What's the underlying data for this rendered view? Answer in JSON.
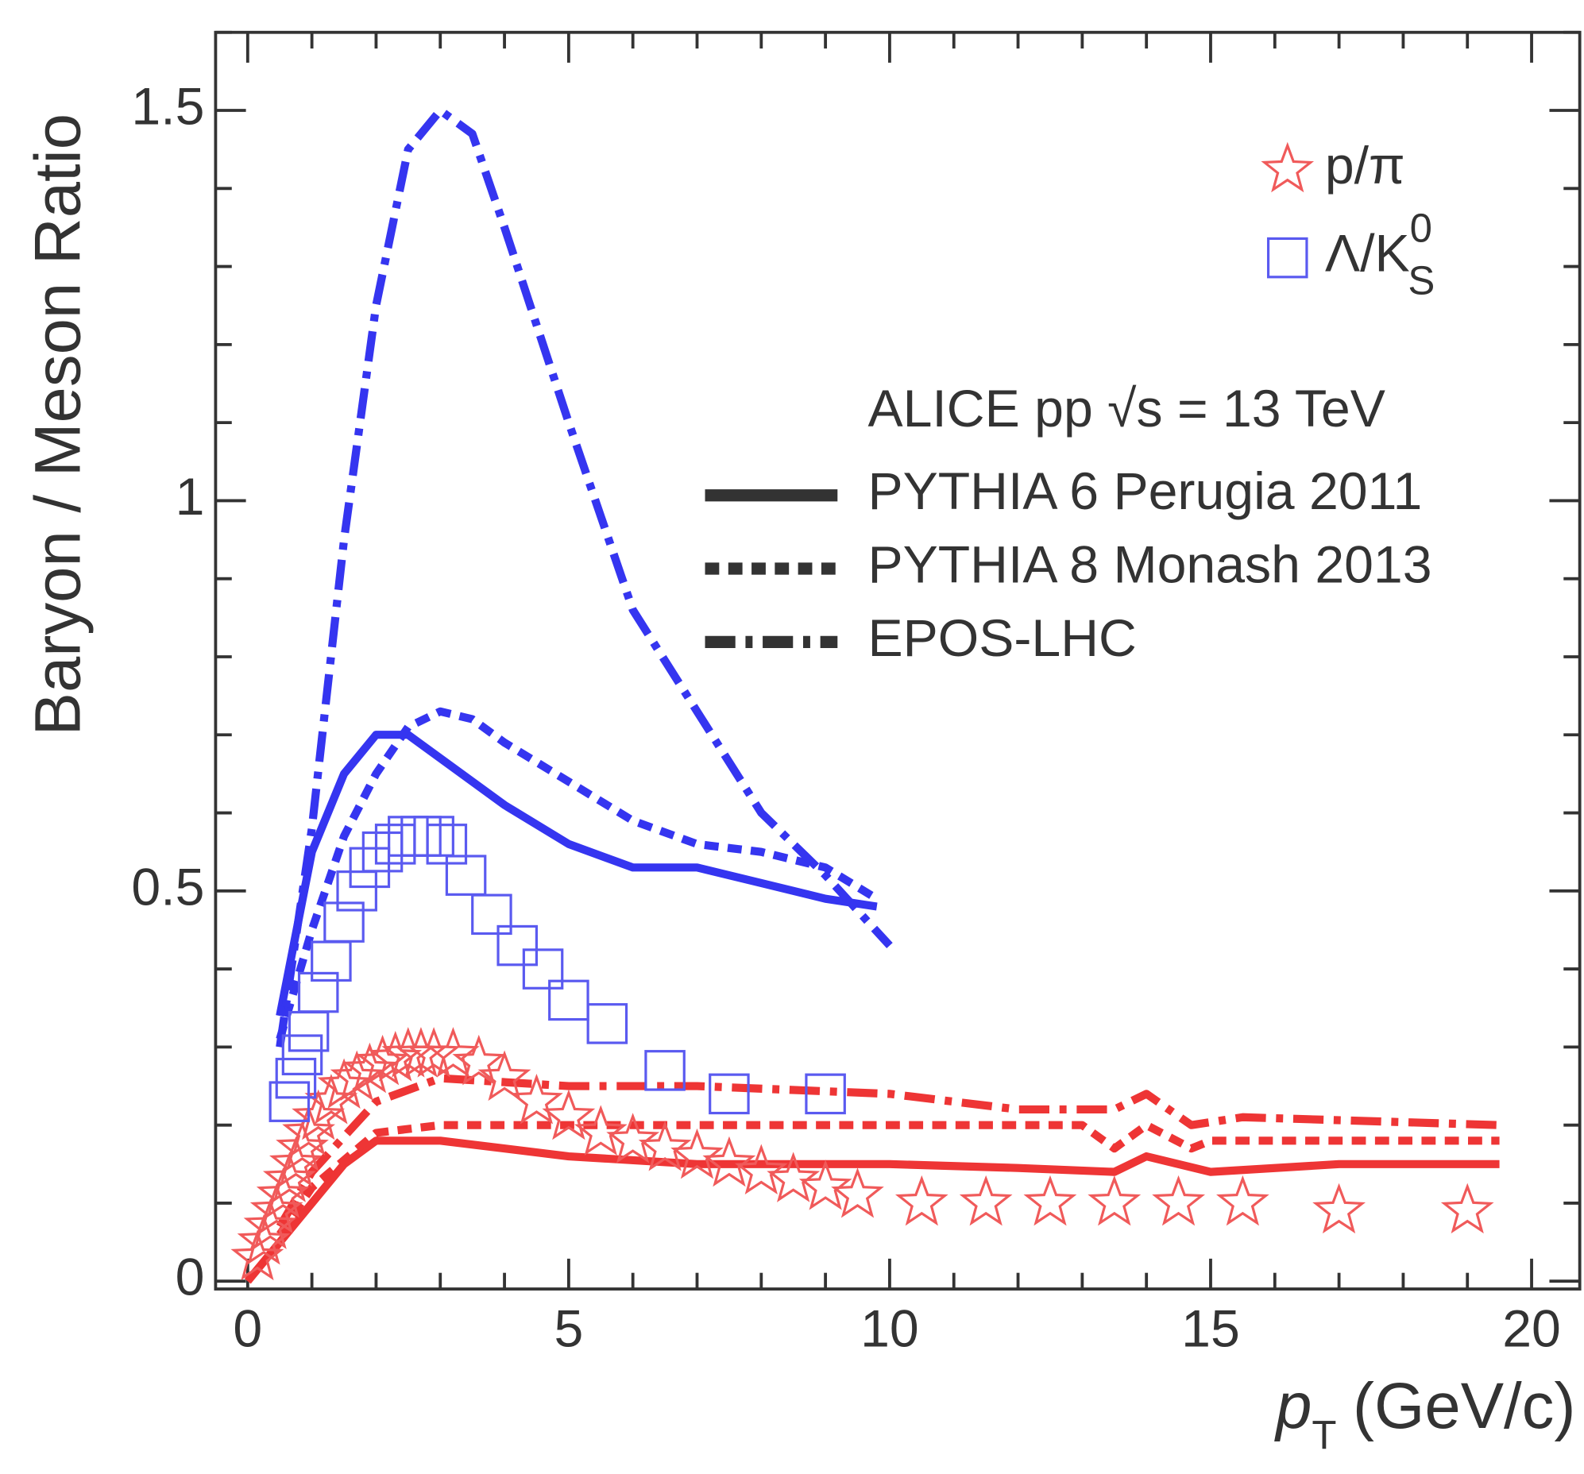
{
  "chart_data": {
    "type": "line",
    "ylabel": "Baryon / Meson Ratio",
    "xlabel": {
      "var": "p",
      "sub": "T",
      "unit": "(GeV/c)"
    },
    "annotation": "ALICE pp √s = 13 TeV",
    "xlim": [
      -0.5,
      20.75
    ],
    "ylim": [
      -0.01,
      1.6
    ],
    "xticks": [
      0,
      5,
      10,
      15,
      20
    ],
    "yticks": [
      0,
      0.5,
      1,
      1.5
    ],
    "xticks_minor": [
      1,
      2,
      3,
      4,
      6,
      7,
      8,
      9,
      11,
      12,
      13,
      14,
      16,
      17,
      18,
      19
    ],
    "yticks_minor": [
      0.1,
      0.2,
      0.3,
      0.4,
      0.6,
      0.7,
      0.8,
      0.9,
      1.1,
      1.2,
      1.3,
      1.4,
      1.6
    ],
    "species": [
      {
        "name": "p/π",
        "color": "#f05a5a",
        "line_color": "#ee3535",
        "marker": "star",
        "x": [
          0.15,
          0.25,
          0.35,
          0.45,
          0.55,
          0.65,
          0.75,
          0.85,
          0.95,
          1.1,
          1.3,
          1.5,
          1.7,
          1.9,
          2.1,
          2.3,
          2.5,
          2.7,
          2.9,
          3.2,
          3.6,
          4.0,
          4.5,
          5.0,
          5.5,
          6.0,
          6.5,
          7.0,
          7.5,
          8.0,
          8.5,
          9.0,
          9.5,
          10.5,
          11.5,
          12.5,
          13.5,
          14.5,
          15.5,
          17,
          19
        ],
        "values": [
          0.03,
          0.05,
          0.07,
          0.09,
          0.11,
          0.13,
          0.15,
          0.17,
          0.19,
          0.21,
          0.23,
          0.25,
          0.26,
          0.27,
          0.28,
          0.285,
          0.29,
          0.29,
          0.29,
          0.29,
          0.28,
          0.26,
          0.23,
          0.21,
          0.19,
          0.18,
          0.17,
          0.16,
          0.15,
          0.14,
          0.13,
          0.12,
          0.11,
          0.1,
          0.1,
          0.1,
          0.1,
          0.1,
          0.1,
          0.09,
          0.09
        ]
      },
      {
        "name": "Λ/K",
        "name_sup": "0",
        "name_sub": "S",
        "color": "#5a5af0",
        "line_color": "#3535f0",
        "marker": "square",
        "x": [
          0.65,
          0.75,
          0.85,
          0.95,
          1.1,
          1.3,
          1.5,
          1.7,
          1.9,
          2.1,
          2.3,
          2.5,
          2.7,
          2.9,
          3.1,
          3.4,
          3.8,
          4.2,
          4.6,
          5.0,
          5.6,
          6.5,
          7.5,
          9.0
        ],
        "values": [
          0.23,
          0.26,
          0.29,
          0.32,
          0.37,
          0.41,
          0.46,
          0.5,
          0.53,
          0.55,
          0.56,
          0.57,
          0.57,
          0.57,
          0.56,
          0.52,
          0.47,
          0.43,
          0.4,
          0.36,
          0.33,
          0.27,
          0.24,
          0.24
        ]
      }
    ],
    "models": [
      {
        "name": "PYTHIA 6 Perugia 2011",
        "style": "solid",
        "curves": [
          {
            "species": 1,
            "x": [
              0.5,
              1.0,
              1.5,
              2.0,
              2.5,
              3.0,
              4.0,
              5.0,
              6.0,
              7.0,
              8.0,
              9.0,
              9.8
            ],
            "values": [
              0.34,
              0.55,
              0.65,
              0.7,
              0.7,
              0.67,
              0.61,
              0.56,
              0.53,
              0.53,
              0.51,
              0.49,
              0.48
            ]
          },
          {
            "species": 0,
            "x": [
              0,
              0.5,
              1.0,
              1.5,
              2.0,
              3.0,
              5.0,
              7.0,
              10,
              12,
              13.5,
              14,
              15,
              17,
              19.5
            ],
            "values": [
              0.0,
              0.05,
              0.1,
              0.15,
              0.18,
              0.18,
              0.16,
              0.15,
              0.15,
              0.145,
              0.14,
              0.16,
              0.14,
              0.15,
              0.15
            ]
          }
        ]
      },
      {
        "name": "PYTHIA 8 Monash 2013",
        "style": "dashed",
        "curves": [
          {
            "species": 1,
            "x": [
              0.5,
              1.0,
              1.5,
              2.0,
              2.5,
              3.0,
              3.5,
              4.0,
              5.0,
              6.0,
              7.0,
              8.0,
              9.0,
              9.8
            ],
            "values": [
              0.31,
              0.45,
              0.57,
              0.65,
              0.71,
              0.73,
              0.72,
              0.69,
              0.64,
              0.59,
              0.56,
              0.55,
              0.53,
              0.49
            ]
          },
          {
            "species": 0,
            "x": [
              0.5,
              1.0,
              2.0,
              3.0,
              5.0,
              7.0,
              10,
              13,
              13.5,
              14,
              14.7,
              15,
              17,
              19.5
            ],
            "values": [
              0.06,
              0.12,
              0.19,
              0.2,
              0.2,
              0.2,
              0.2,
              0.2,
              0.17,
              0.2,
              0.17,
              0.18,
              0.18,
              0.18
            ]
          }
        ]
      },
      {
        "name": "EPOS-LHC",
        "style": "dashdot",
        "curves": [
          {
            "species": 1,
            "x": [
              0.5,
              1.0,
              1.5,
              2.0,
              2.5,
              3.0,
              3.5,
              4.0,
              5.0,
              6.0,
              7.0,
              8.0,
              9.0,
              10
            ],
            "values": [
              0.3,
              0.58,
              0.95,
              1.25,
              1.45,
              1.5,
              1.47,
              1.35,
              1.1,
              0.86,
              0.73,
              0.6,
              0.52,
              0.43
            ]
          },
          {
            "species": 0,
            "x": [
              0.5,
              1.0,
              2.0,
              3.0,
              5.0,
              7.0,
              10,
              12,
              13.5,
              14,
              14.7,
              15.5,
              19.5
            ],
            "values": [
              0.07,
              0.14,
              0.23,
              0.26,
              0.25,
              0.25,
              0.24,
              0.22,
              0.22,
              0.24,
              0.2,
              0.21,
              0.2
            ]
          }
        ]
      }
    ]
  }
}
